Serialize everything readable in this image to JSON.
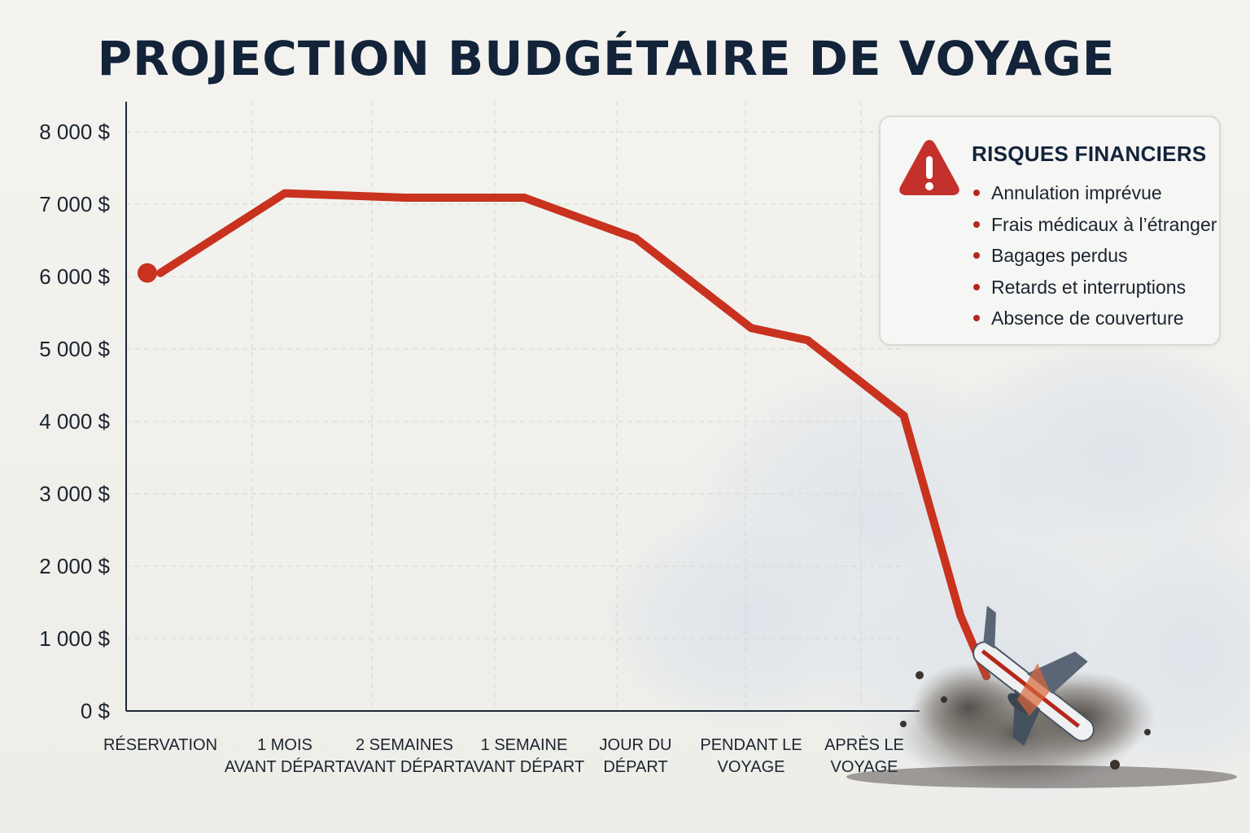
{
  "chart_data": {
    "type": "line",
    "title": "PROJECTION BUDGÉTAIRE DE VOYAGE",
    "xlabel": "",
    "ylabel": "",
    "ylim": [
      0,
      8000
    ],
    "y_ticks": [
      "0 $",
      "1 000 $",
      "2 000 $",
      "3 000 $",
      "4 000 $",
      "5 000 $",
      "6 000 $",
      "7 000 $",
      "8 000 $"
    ],
    "categories": [
      [
        "RÉSERVATION"
      ],
      [
        "1 MOIS",
        "AVANT DÉPART"
      ],
      [
        "2 SEMAINES",
        "AVANT DÉPART"
      ],
      [
        "1 SEMAINE",
        "AVANT DÉPART"
      ],
      [
        "JOUR DU",
        "DÉPART"
      ],
      [
        "PENDANT LE",
        "VOYAGE"
      ],
      [
        "APRÈS LE",
        "VOYAGE"
      ]
    ],
    "series": [
      {
        "x": [
          0,
          1,
          2,
          3,
          4,
          5,
          5.5,
          6.35,
          6.85,
          7.08
        ],
        "values": [
          6050,
          7150,
          7090,
          7090,
          6530,
          5290,
          5120,
          4080,
          1320,
          480
        ]
      }
    ],
    "grid": true,
    "line_color": "#c8321f",
    "legend": "none",
    "annotation": {
      "title": "RISQUES FINANCIERS",
      "items": [
        "Annulation imprévue",
        "Frais médicaux à l’étranger",
        "Bagages perdus",
        "Retards et interruptions",
        "Absence de couverture"
      ],
      "icon": "warning-icon",
      "placement": "top-right"
    },
    "decoration": "crashing-airplane-icon"
  }
}
